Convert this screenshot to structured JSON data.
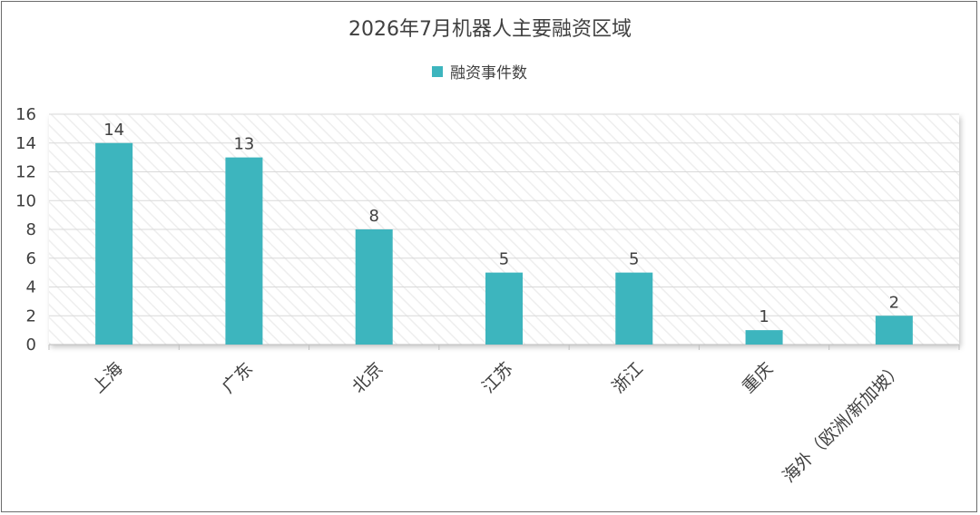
{
  "chart_data": {
    "type": "bar",
    "title": "2026年7月机器人主要融资区域",
    "categories": [
      "上海",
      "广东",
      "北京",
      "江苏",
      "浙江",
      "重庆",
      "海外（欧洲/新加坡）"
    ],
    "series": [
      {
        "name": "融资事件数",
        "values": [
          14,
          13,
          8,
          5,
          5,
          1,
          2
        ]
      }
    ],
    "ylim": [
      0,
      16
    ],
    "yticks": [
      0,
      2,
      4,
      6,
      8,
      10,
      12,
      14,
      16
    ],
    "xlabel": "",
    "ylabel": "",
    "legend": "top-center",
    "grid": true,
    "data_labels": true,
    "colors": {
      "bar": "#3DB5BE",
      "grid": "#D9D9D9",
      "text": "#404040"
    }
  }
}
